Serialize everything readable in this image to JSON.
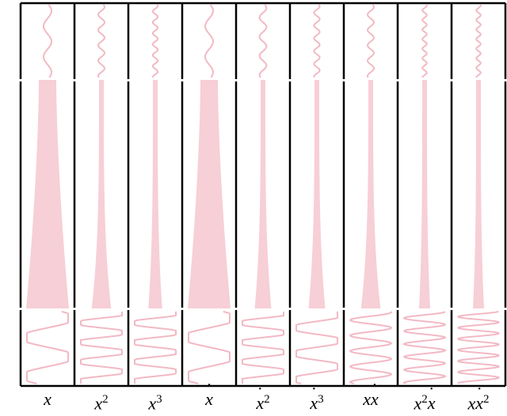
{
  "figure": {
    "columns": [
      {
        "base": "x",
        "sup": "",
        "dot": false,
        "base2": "",
        "sup2": "",
        "dot2": false,
        "wave_top": 2.5,
        "wave_bottom": 2,
        "taper": 1.0
      },
      {
        "base": "x",
        "sup": "2",
        "dot": false,
        "base2": "",
        "sup2": "",
        "dot2": false,
        "wave_top": 5,
        "wave_bottom": 4,
        "taper": 0.35
      },
      {
        "base": "x",
        "sup": "3",
        "dot": false,
        "base2": "",
        "sup2": "",
        "dot2": false,
        "wave_top": 7,
        "wave_bottom": 4,
        "taper": 0.25
      },
      {
        "base": "x",
        "sup": "",
        "dot": true,
        "base2": "",
        "sup2": "",
        "dot2": false,
        "wave_top": 2.5,
        "wave_bottom": 2,
        "taper": 1.0
      },
      {
        "base": "x",
        "sup": "2",
        "dot": true,
        "base2": "",
        "sup2": "",
        "dot2": false,
        "wave_top": 4,
        "wave_bottom": 4,
        "taper": 0.3
      },
      {
        "base": "x",
        "sup": "3",
        "dot": true,
        "base2": "",
        "sup2": "",
        "dot2": false,
        "wave_top": 6,
        "wave_bottom": 3,
        "taper": 0.3
      },
      {
        "base": "x",
        "sup": "",
        "dot": false,
        "base2": "x",
        "sup2": "",
        "dot2": true,
        "wave_top": 5,
        "wave_bottom": 5,
        "taper": 0.35
      },
      {
        "base": "x",
        "sup": "2",
        "dot": false,
        "base2": "x",
        "sup2": "",
        "dot2": true,
        "wave_top": 8,
        "wave_bottom": 6,
        "taper": 0.2
      },
      {
        "base": "x",
        "sup": "",
        "dot": false,
        "base2": "x",
        "sup2": "2",
        "dot2": true,
        "wave_top": 8,
        "wave_bottom": 7,
        "taper": 0.2
      }
    ],
    "colors": {
      "fill": "#f7cfd6",
      "stroke": "#f2b9c4",
      "frame": "#000000"
    }
  }
}
